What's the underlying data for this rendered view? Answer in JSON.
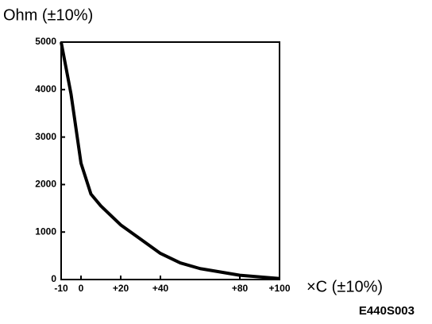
{
  "chart_data": {
    "type": "line",
    "y_label": "Ohm (±10%)",
    "x_label": "×C (±10%)",
    "annotation": "E440S003",
    "x": [
      -10,
      -5,
      0,
      5,
      10,
      20,
      30,
      40,
      50,
      60,
      80,
      100
    ],
    "series": [
      {
        "color": "#000000",
        "values": [
          5000,
          3900,
          2450,
          1800,
          1550,
          1150,
          850,
          550,
          350,
          230,
          90,
          20
        ]
      }
    ],
    "xlim": [
      -10,
      100
    ],
    "xticks": [
      -10,
      0,
      {
        "value": 20,
        "label": "+20"
      },
      {
        "value": 40,
        "label": "+40"
      },
      {
        "value": 80,
        "label": "+80"
      },
      {
        "value": 100,
        "label": "+100"
      }
    ],
    "ylim": [
      0,
      5000
    ],
    "yticks": [
      0,
      1000,
      2000,
      3000,
      4000,
      5000
    ],
    "grid": false
  }
}
